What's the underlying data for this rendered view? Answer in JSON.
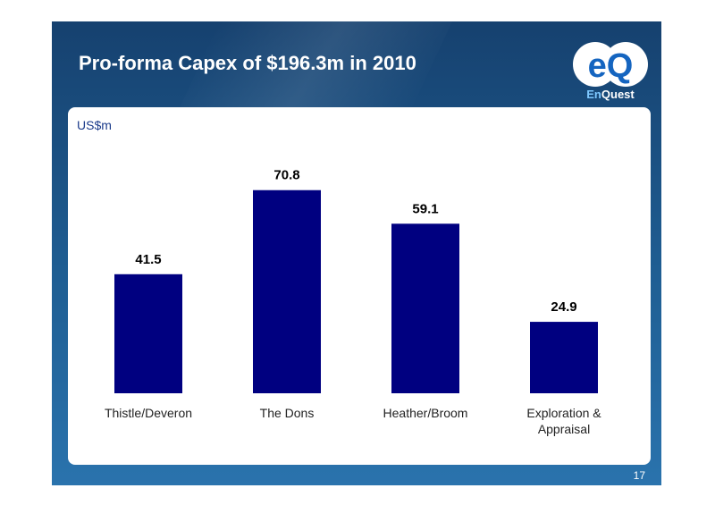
{
  "slide": {
    "title": "Pro-forma Capex of $196.3m in 2010",
    "page_number": "17"
  },
  "logo": {
    "mark": "eQ",
    "wordmark_part1": "En",
    "wordmark_part2": "Quest"
  },
  "colors": {
    "bar": "#000080",
    "background_dark": "#16416f",
    "background_light": "#2a73ad",
    "logo_blue": "#1565c0"
  },
  "chart_data": {
    "type": "bar",
    "ylabel": "US$m",
    "categories": [
      [
        "Thistle/Deveron"
      ],
      [
        "The Dons"
      ],
      [
        "Heather/Broom"
      ],
      [
        "Exploration &",
        "Appraisal"
      ]
    ],
    "values": [
      41.5,
      70.8,
      59.1,
      24.9
    ],
    "data_labels": [
      "41.5",
      "70.8",
      "59.1",
      "24.9"
    ],
    "ylim": [
      0,
      81
    ],
    "grid": false,
    "legend": "none"
  }
}
